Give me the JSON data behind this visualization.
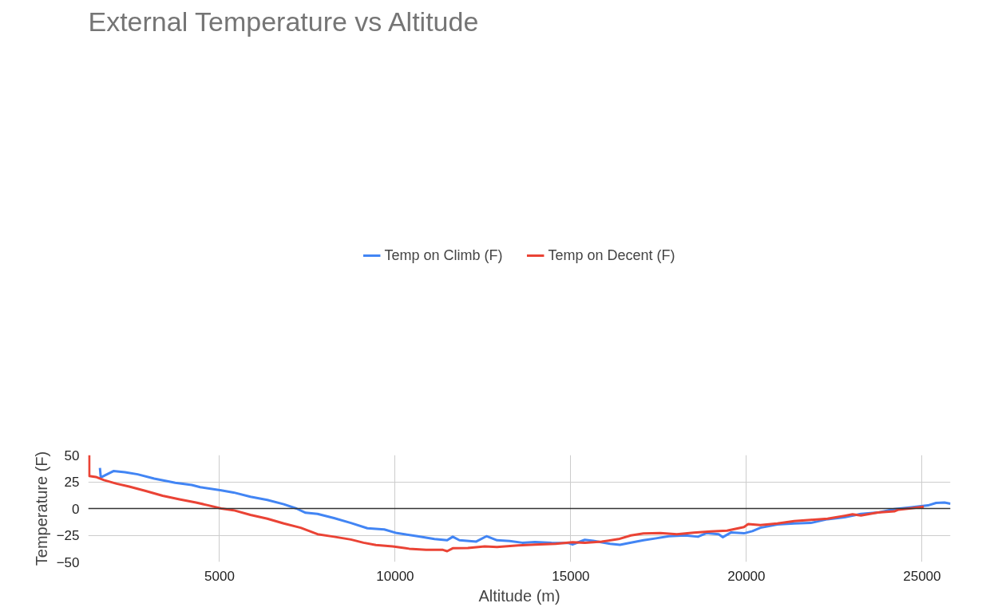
{
  "chart_data": {
    "type": "line",
    "title": "External Temperature vs Altitude",
    "xlabel": "Altitude (m)",
    "ylabel": "Temperature (F)",
    "xlim": [
      1262,
      25810
    ],
    "xticks": [
      5000,
      10000,
      15000,
      20000,
      25000
    ],
    "ylim": [
      -50,
      50
    ],
    "yticks": [
      -50,
      -25,
      0,
      25,
      50
    ],
    "grid": true,
    "legend": "top",
    "line_style": "solid",
    "ref_lines": [
      {
        "axis": "y",
        "value": 0,
        "color": "#333333"
      }
    ],
    "series": [
      {
        "name": "Temp on Climb (F)",
        "color": "#4285f4",
        "x": [
          1595,
          1620,
          1740,
          1980,
          2310,
          2670,
          3140,
          3740,
          4210,
          4450,
          5050,
          5400,
          5880,
          6360,
          6830,
          7190,
          7450,
          7790,
          8260,
          8740,
          9210,
          9690,
          10050,
          10640,
          11120,
          11480,
          11640,
          11830,
          12310,
          12600,
          12900,
          13260,
          13620,
          13980,
          14450,
          14930,
          15050,
          15400,
          15640,
          16120,
          16400,
          16600,
          17070,
          17430,
          17790,
          18260,
          18620,
          18860,
          19210,
          19330,
          19570,
          19930,
          20170,
          20400,
          20880,
          21360,
          21830,
          22310,
          22790,
          23260,
          23740,
          24210,
          24690,
          25170,
          25400,
          25640,
          25810
        ],
        "values": [
          38,
          29,
          31,
          35,
          34,
          32,
          28,
          24,
          22,
          20,
          17,
          15,
          11,
          8,
          4,
          0,
          -4,
          -5,
          -9,
          -13.5,
          -18.5,
          -19.6,
          -23,
          -26,
          -28.6,
          -29.7,
          -26.4,
          -29.7,
          -30.9,
          -25.9,
          -29.7,
          -30.4,
          -32,
          -31.3,
          -32,
          -32.2,
          -33.6,
          -29.3,
          -30.2,
          -33,
          -34,
          -32.7,
          -29.7,
          -27.9,
          -25.9,
          -25.2,
          -26.4,
          -23,
          -24,
          -26.8,
          -22.3,
          -23.2,
          -21.2,
          -18,
          -15,
          -14,
          -13.5,
          -10,
          -8.3,
          -5,
          -3.8,
          -0.5,
          1.1,
          2.9,
          5.2,
          5.6,
          4.5
        ]
      },
      {
        "name": "Temp on Decent (F)",
        "color": "#ea4335",
        "x": [
          1290,
          1291,
          1480,
          1710,
          2070,
          2430,
          2900,
          3380,
          3860,
          4330,
          4690,
          5050,
          5400,
          5880,
          6360,
          6830,
          7310,
          7790,
          8260,
          8740,
          9100,
          9450,
          9930,
          10400,
          10880,
          11360,
          11480,
          11640,
          12070,
          12550,
          12900,
          13500,
          13980,
          14570,
          15050,
          15400,
          15880,
          16360,
          16710,
          17070,
          17550,
          18020,
          18500,
          18980,
          19450,
          19930,
          20050,
          20400,
          20880,
          21360,
          21830,
          22310,
          22790,
          23020,
          23260,
          23740,
          24210,
          24330,
          24690,
          25050
        ],
        "values": [
          50,
          30.4,
          29.5,
          26.6,
          23.2,
          20.5,
          16.4,
          11.9,
          8.6,
          5.6,
          2.9,
          0,
          -1.6,
          -6,
          -9.5,
          -14,
          -18,
          -24,
          -26.4,
          -29,
          -32,
          -34.2,
          -35.4,
          -37.6,
          -38.7,
          -38.7,
          -39.9,
          -37.2,
          -37,
          -35.4,
          -36,
          -34.5,
          -33.8,
          -33.1,
          -31.5,
          -32,
          -30.9,
          -28.6,
          -25.2,
          -23.4,
          -23,
          -24,
          -22.5,
          -21.4,
          -20.7,
          -17.3,
          -14.6,
          -15.5,
          -14,
          -11.7,
          -10.6,
          -9.5,
          -6.8,
          -5.4,
          -6.5,
          -3.8,
          -2.7,
          -1.1,
          0.2,
          1.6
        ]
      }
    ]
  }
}
